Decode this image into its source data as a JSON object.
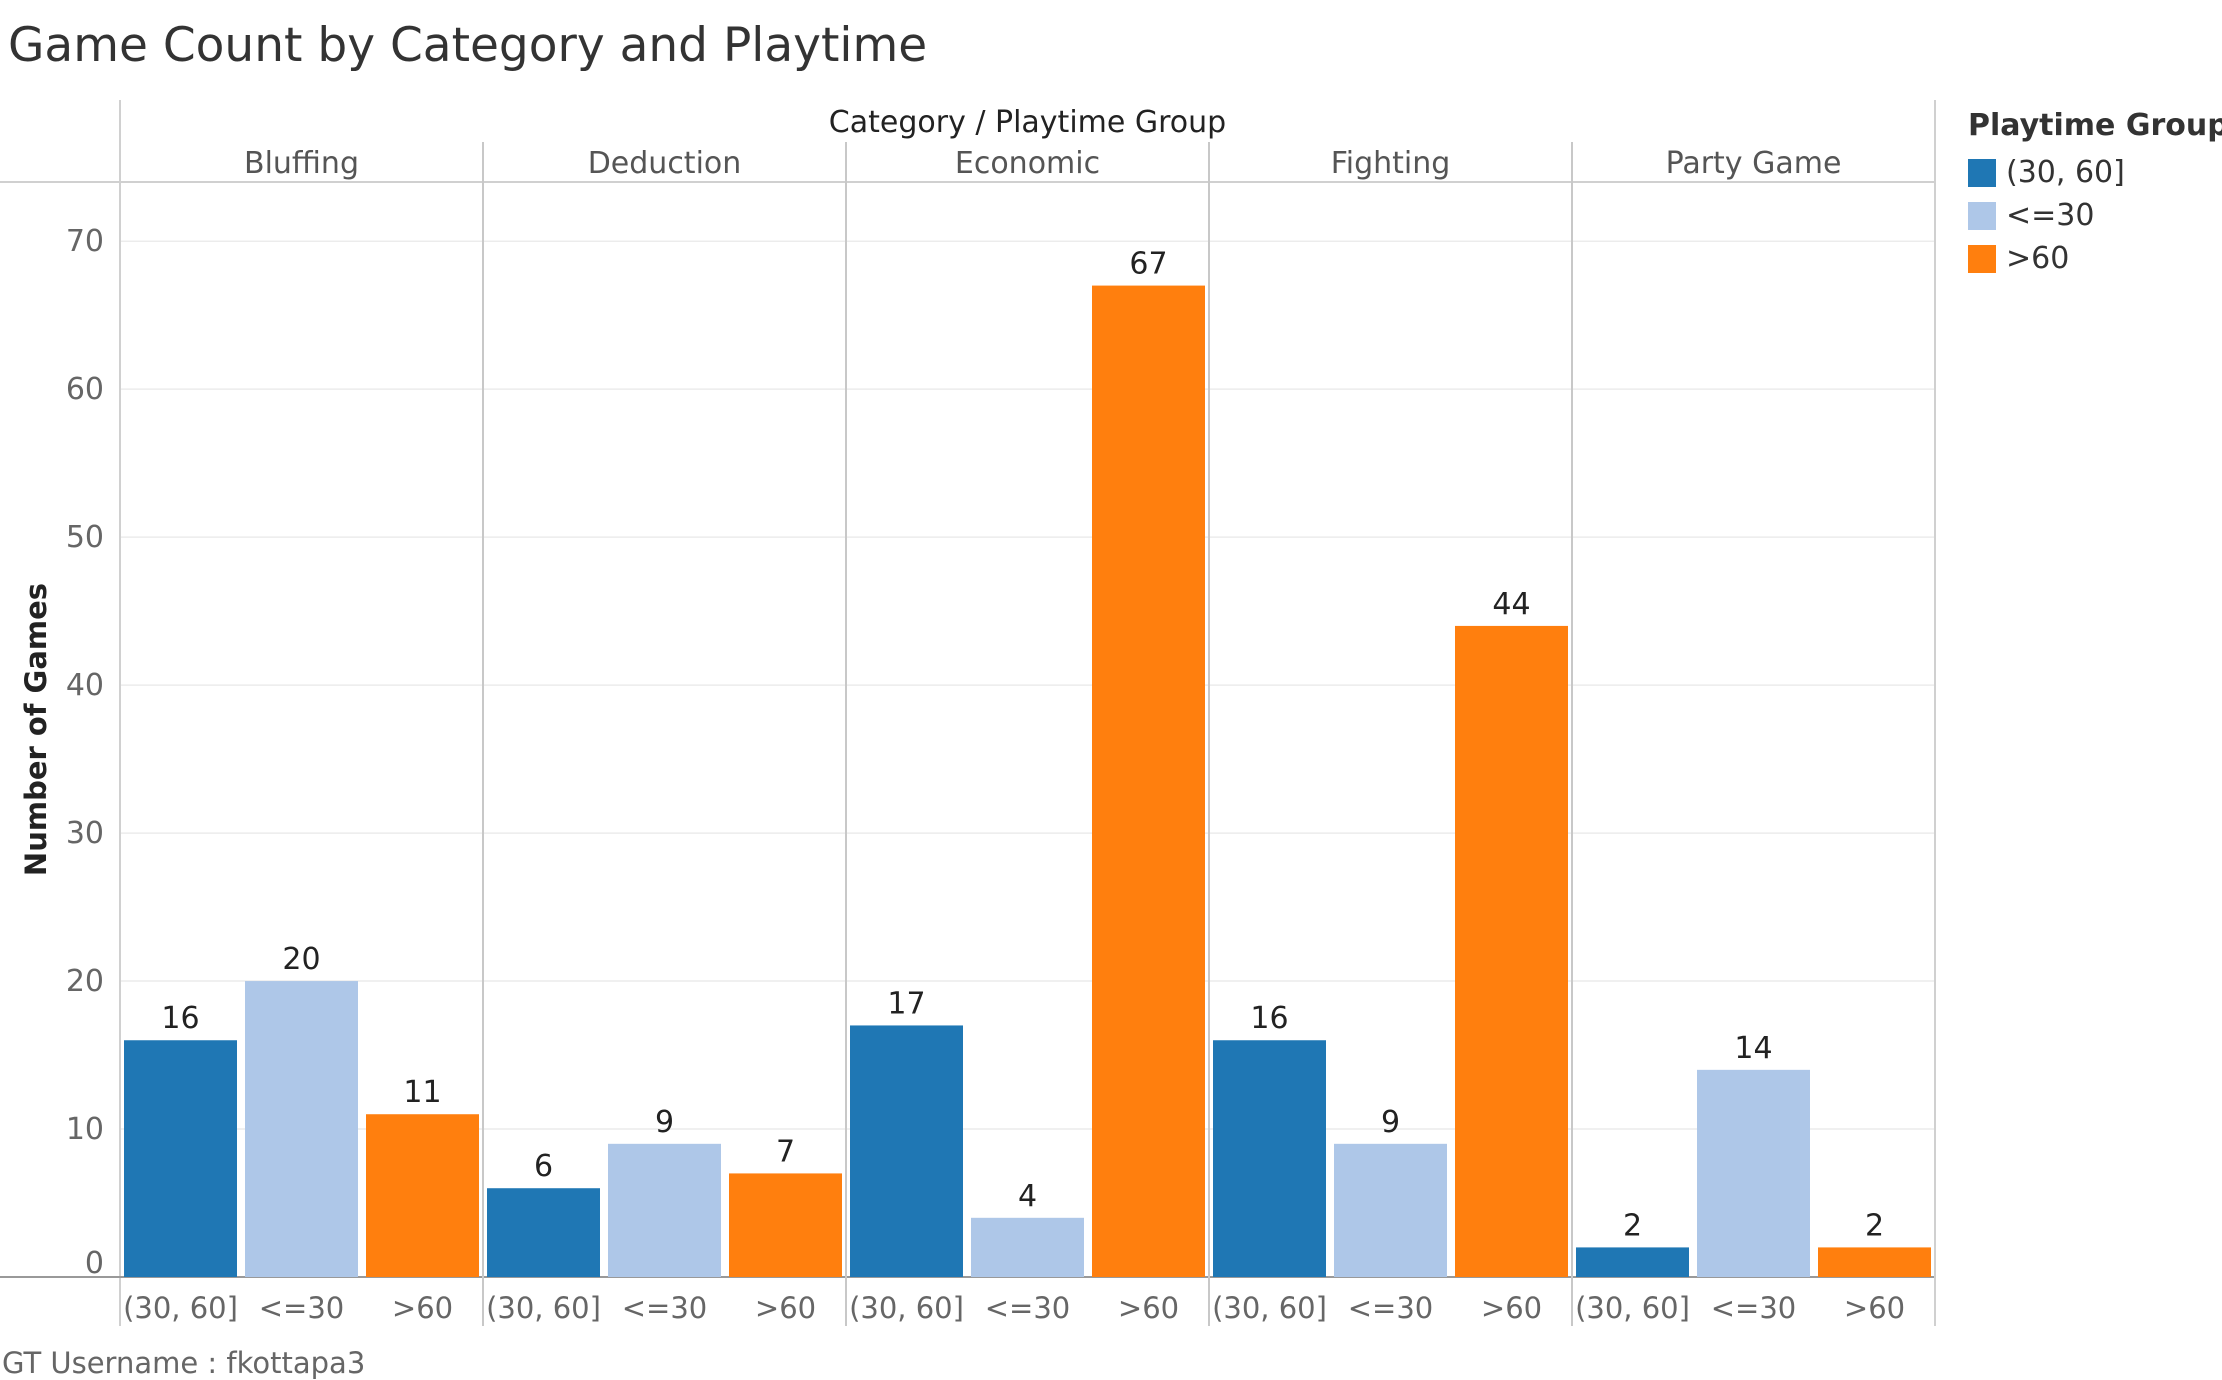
{
  "title": "Game Count by Category and Playtime",
  "footer": "GT Username : fkottapa3",
  "legend": {
    "title": "Playtime Group",
    "items": [
      {
        "label": "(30, 60]",
        "color": "#1f77b4"
      },
      {
        "label": "<=30",
        "color": "#aec7e8"
      },
      {
        "label": ">60",
        "color": "#ff7f0e"
      }
    ]
  },
  "chart_data": {
    "type": "bar",
    "header": "Category  /  Playtime Group",
    "ylabel": "Number of Games",
    "ylim": [
      0,
      74
    ],
    "yticks": [
      0,
      10,
      20,
      30,
      40,
      50,
      60,
      70
    ],
    "grid": true,
    "legend_position": "right",
    "groups": [
      "(30, 60]",
      "<=30",
      ">60"
    ],
    "categories": [
      "Bluffing",
      "Deduction",
      "Economic",
      "Fighting",
      "Party Game"
    ],
    "series": [
      {
        "name": "(30, 60]",
        "values": [
          16,
          6,
          17,
          16,
          2
        ]
      },
      {
        "name": "<=30",
        "values": [
          20,
          9,
          4,
          9,
          14
        ]
      },
      {
        "name": ">60",
        "values": [
          11,
          7,
          67,
          44,
          2
        ]
      }
    ]
  }
}
